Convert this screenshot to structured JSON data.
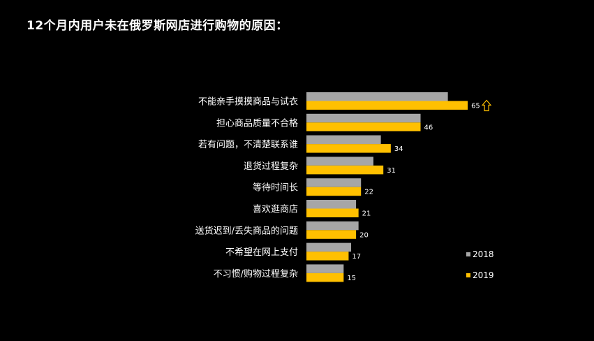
{
  "page": {
    "title": "12个月内用户未在俄罗斯网店进行购物的原因："
  },
  "chart_data": {
    "type": "bar",
    "orientation": "horizontal",
    "categories": [
      "不能亲手摸摸商品与试衣",
      "担心商品质量不合格",
      "若有问题，不清楚联系谁",
      "退货过程复杂",
      "等待时间长",
      "喜欢逛商店",
      "送货迟到/丢失商品的问题",
      "不希望在网上支付",
      "不习惯/购物过程复杂"
    ],
    "series": [
      {
        "name": "2018",
        "color": "#a6a6a6",
        "values": [
          57,
          46,
          30,
          27,
          22,
          20,
          21,
          18,
          15
        ]
      },
      {
        "name": "2019",
        "color": "#ffc000",
        "values": [
          65,
          46,
          34,
          31,
          22,
          21,
          20,
          17,
          15
        ]
      }
    ],
    "labeled_series": "2019",
    "xlim": [
      0,
      100
    ],
    "grid": false,
    "legend_position": "bottom-right",
    "annotations": [
      {
        "category": "不能亲手摸摸商品与试衣",
        "icon": "up-arrow-icon"
      }
    ]
  }
}
